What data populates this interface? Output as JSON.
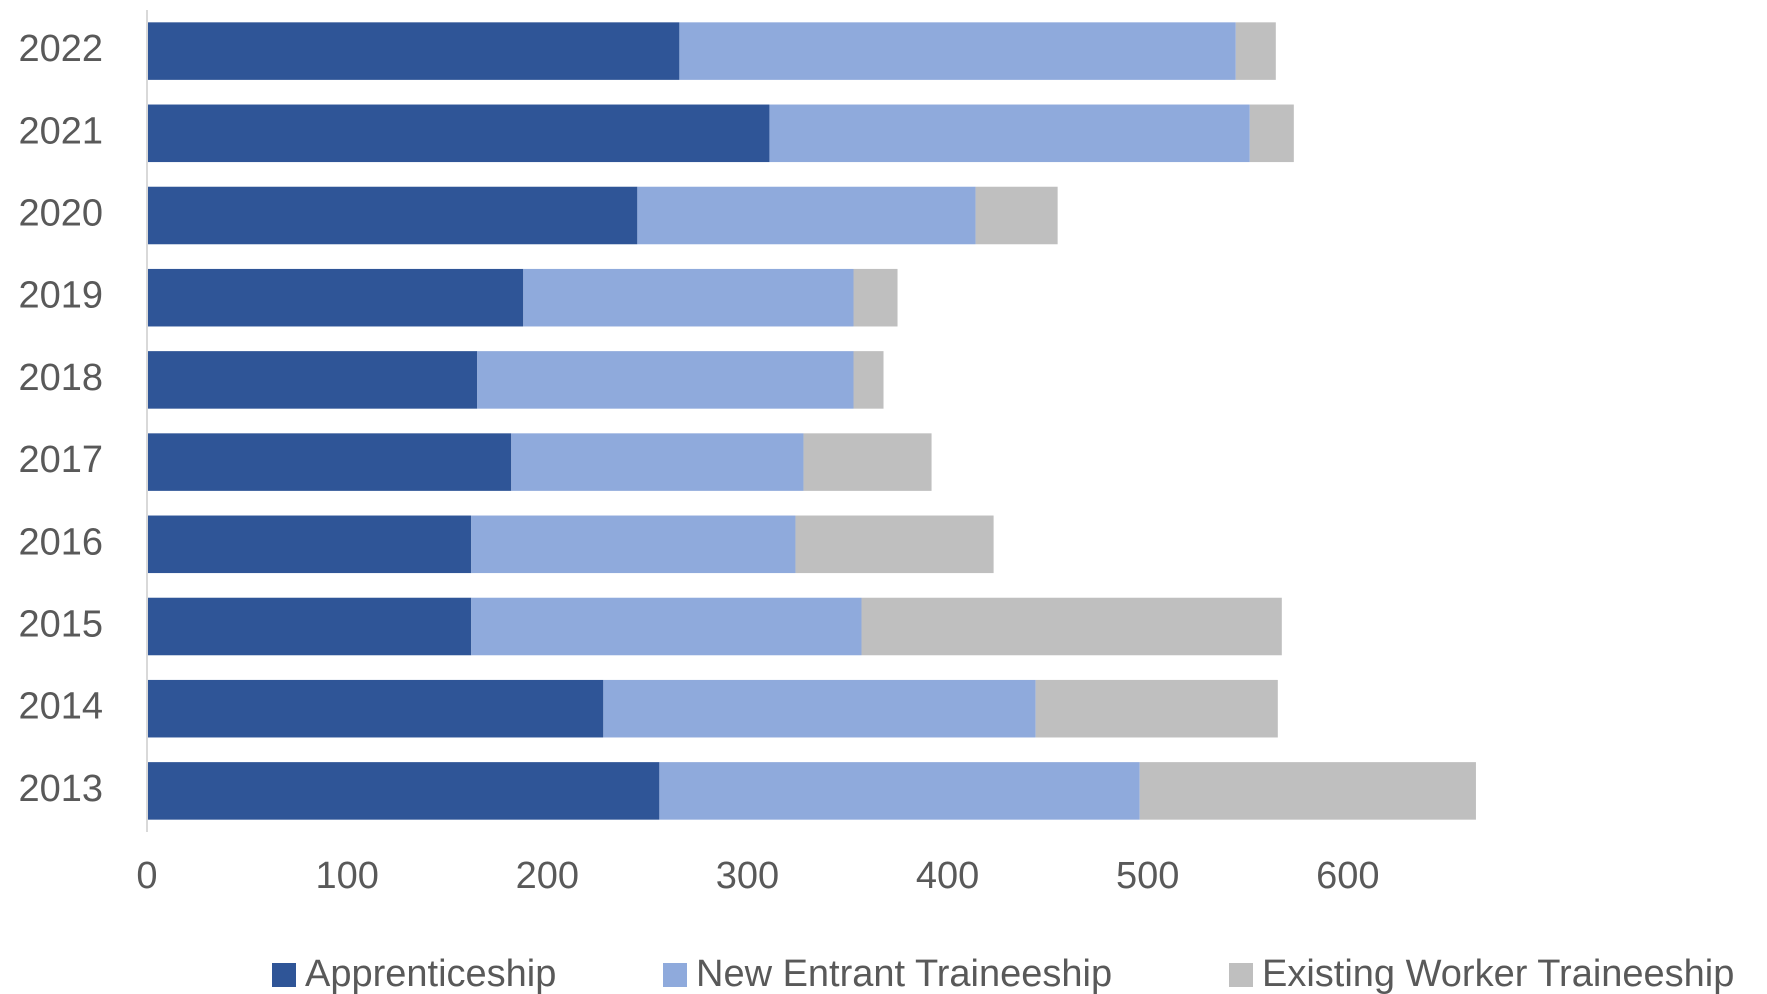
{
  "chart_data": {
    "type": "stacked-bar-horizontal",
    "categories": [
      "2013",
      "2014",
      "2015",
      "2016",
      "2017",
      "2018",
      "2019",
      "2020",
      "2021",
      "2022"
    ],
    "series": [
      {
        "name": "Apprenticeship",
        "color": "#2f5597",
        "values": [
          256,
          228,
          162,
          162,
          182,
          165,
          188,
          245,
          311,
          266
        ]
      },
      {
        "name": "New Entrant Traineeship",
        "color": "#8faadc",
        "values": [
          240,
          216,
          195,
          162,
          146,
          188,
          165,
          169,
          240,
          278
        ]
      },
      {
        "name": "Existing Worker Traineeship",
        "color": "#bfbfbf",
        "values": [
          168,
          121,
          210,
          99,
          64,
          15,
          22,
          41,
          22,
          20
        ]
      }
    ],
    "xlim": [
      0,
      700
    ],
    "xticks": [
      0,
      100,
      200,
      300,
      400,
      500,
      600
    ],
    "grid": false,
    "legend": "bottom"
  }
}
